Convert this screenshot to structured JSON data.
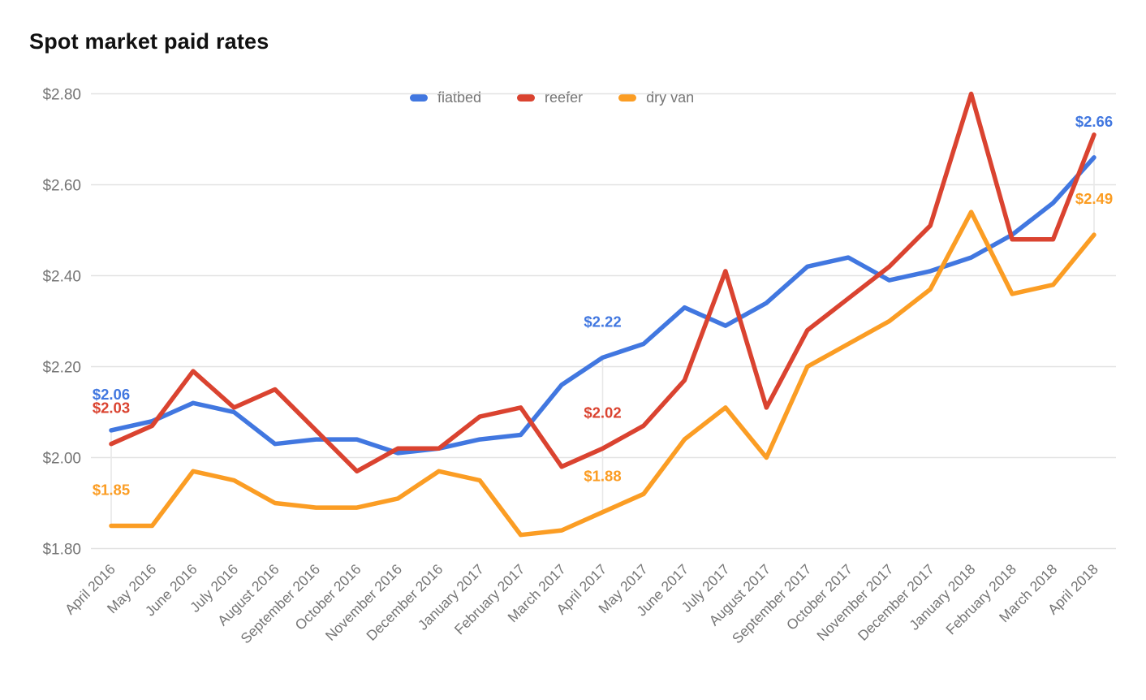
{
  "title": "Spot market paid rates",
  "chart_data": {
    "type": "line",
    "title": "Spot market paid rates",
    "legend_position": "top-center",
    "grid": true,
    "background": "#ffffff",
    "grid_color": "#e2e2e2",
    "axis_text_color": "#757575",
    "ylim": [
      1.8,
      2.8
    ],
    "yticks": [
      {
        "value": 2.8,
        "label": "$2.80"
      },
      {
        "value": 2.6,
        "label": "$2.60"
      },
      {
        "value": 2.4,
        "label": "$2.40"
      },
      {
        "value": 2.2,
        "label": "$2.20"
      },
      {
        "value": 2.0,
        "label": "$2.00"
      },
      {
        "value": 1.8,
        "label": "$1.80"
      }
    ],
    "x": [
      "April 2016",
      "May 2016",
      "June 2016",
      "July 2016",
      "August 2016",
      "September 2016",
      "October 2016",
      "November 2016",
      "December 2016",
      "January 2017",
      "February 2017",
      "March 2017",
      "April 2017",
      "May 2017",
      "June 2017",
      "July 2017",
      "August 2017",
      "September 2017",
      "October 2017",
      "November 2017",
      "December 2017",
      "January 2018",
      "February 2018",
      "March 2018",
      "April 2018"
    ],
    "series": [
      {
        "name": "flatbed",
        "color": "#4177e0",
        "values": [
          2.06,
          2.08,
          2.12,
          2.1,
          2.03,
          2.04,
          2.04,
          2.01,
          2.02,
          2.04,
          2.05,
          2.16,
          2.22,
          2.25,
          2.33,
          2.29,
          2.34,
          2.42,
          2.44,
          2.39,
          2.41,
          2.44,
          2.49,
          2.56,
          2.66
        ]
      },
      {
        "name": "reefer",
        "color": "#da4330",
        "values": [
          2.03,
          2.07,
          2.19,
          2.11,
          2.15,
          2.06,
          1.97,
          2.02,
          2.02,
          2.09,
          2.11,
          1.98,
          2.02,
          2.07,
          2.17,
          2.41,
          2.11,
          2.28,
          2.35,
          2.42,
          2.51,
          2.8,
          2.48,
          2.48,
          2.71
        ]
      },
      {
        "name": "dry van",
        "color": "#fb9d24",
        "values": [
          1.85,
          1.85,
          1.97,
          1.95,
          1.9,
          1.89,
          1.89,
          1.91,
          1.97,
          1.95,
          1.83,
          1.84,
          1.88,
          1.92,
          2.04,
          2.11,
          2.0,
          2.2,
          2.25,
          2.3,
          2.37,
          2.54,
          2.36,
          2.38,
          2.49
        ]
      }
    ],
    "annotations": [
      {
        "series": "flatbed",
        "month": "April 2016",
        "text": "$2.06"
      },
      {
        "series": "reefer",
        "month": "April 2016",
        "text": "$2.03"
      },
      {
        "series": "dry van",
        "month": "April 2016",
        "text": "$1.85"
      },
      {
        "series": "flatbed",
        "month": "April 2017",
        "text": "$2.22"
      },
      {
        "series": "reefer",
        "month": "April 2017",
        "text": "$2.02"
      },
      {
        "series": "dry van",
        "month": "April 2017",
        "text": "$1.88"
      },
      {
        "series": "flatbed",
        "month": "April 2018",
        "text": "$2.66"
      },
      {
        "series": "dry van",
        "month": "April 2018",
        "text": "$2.49"
      }
    ],
    "annotated_columns": [
      "April 2016",
      "April 2017",
      "April 2018"
    ]
  }
}
